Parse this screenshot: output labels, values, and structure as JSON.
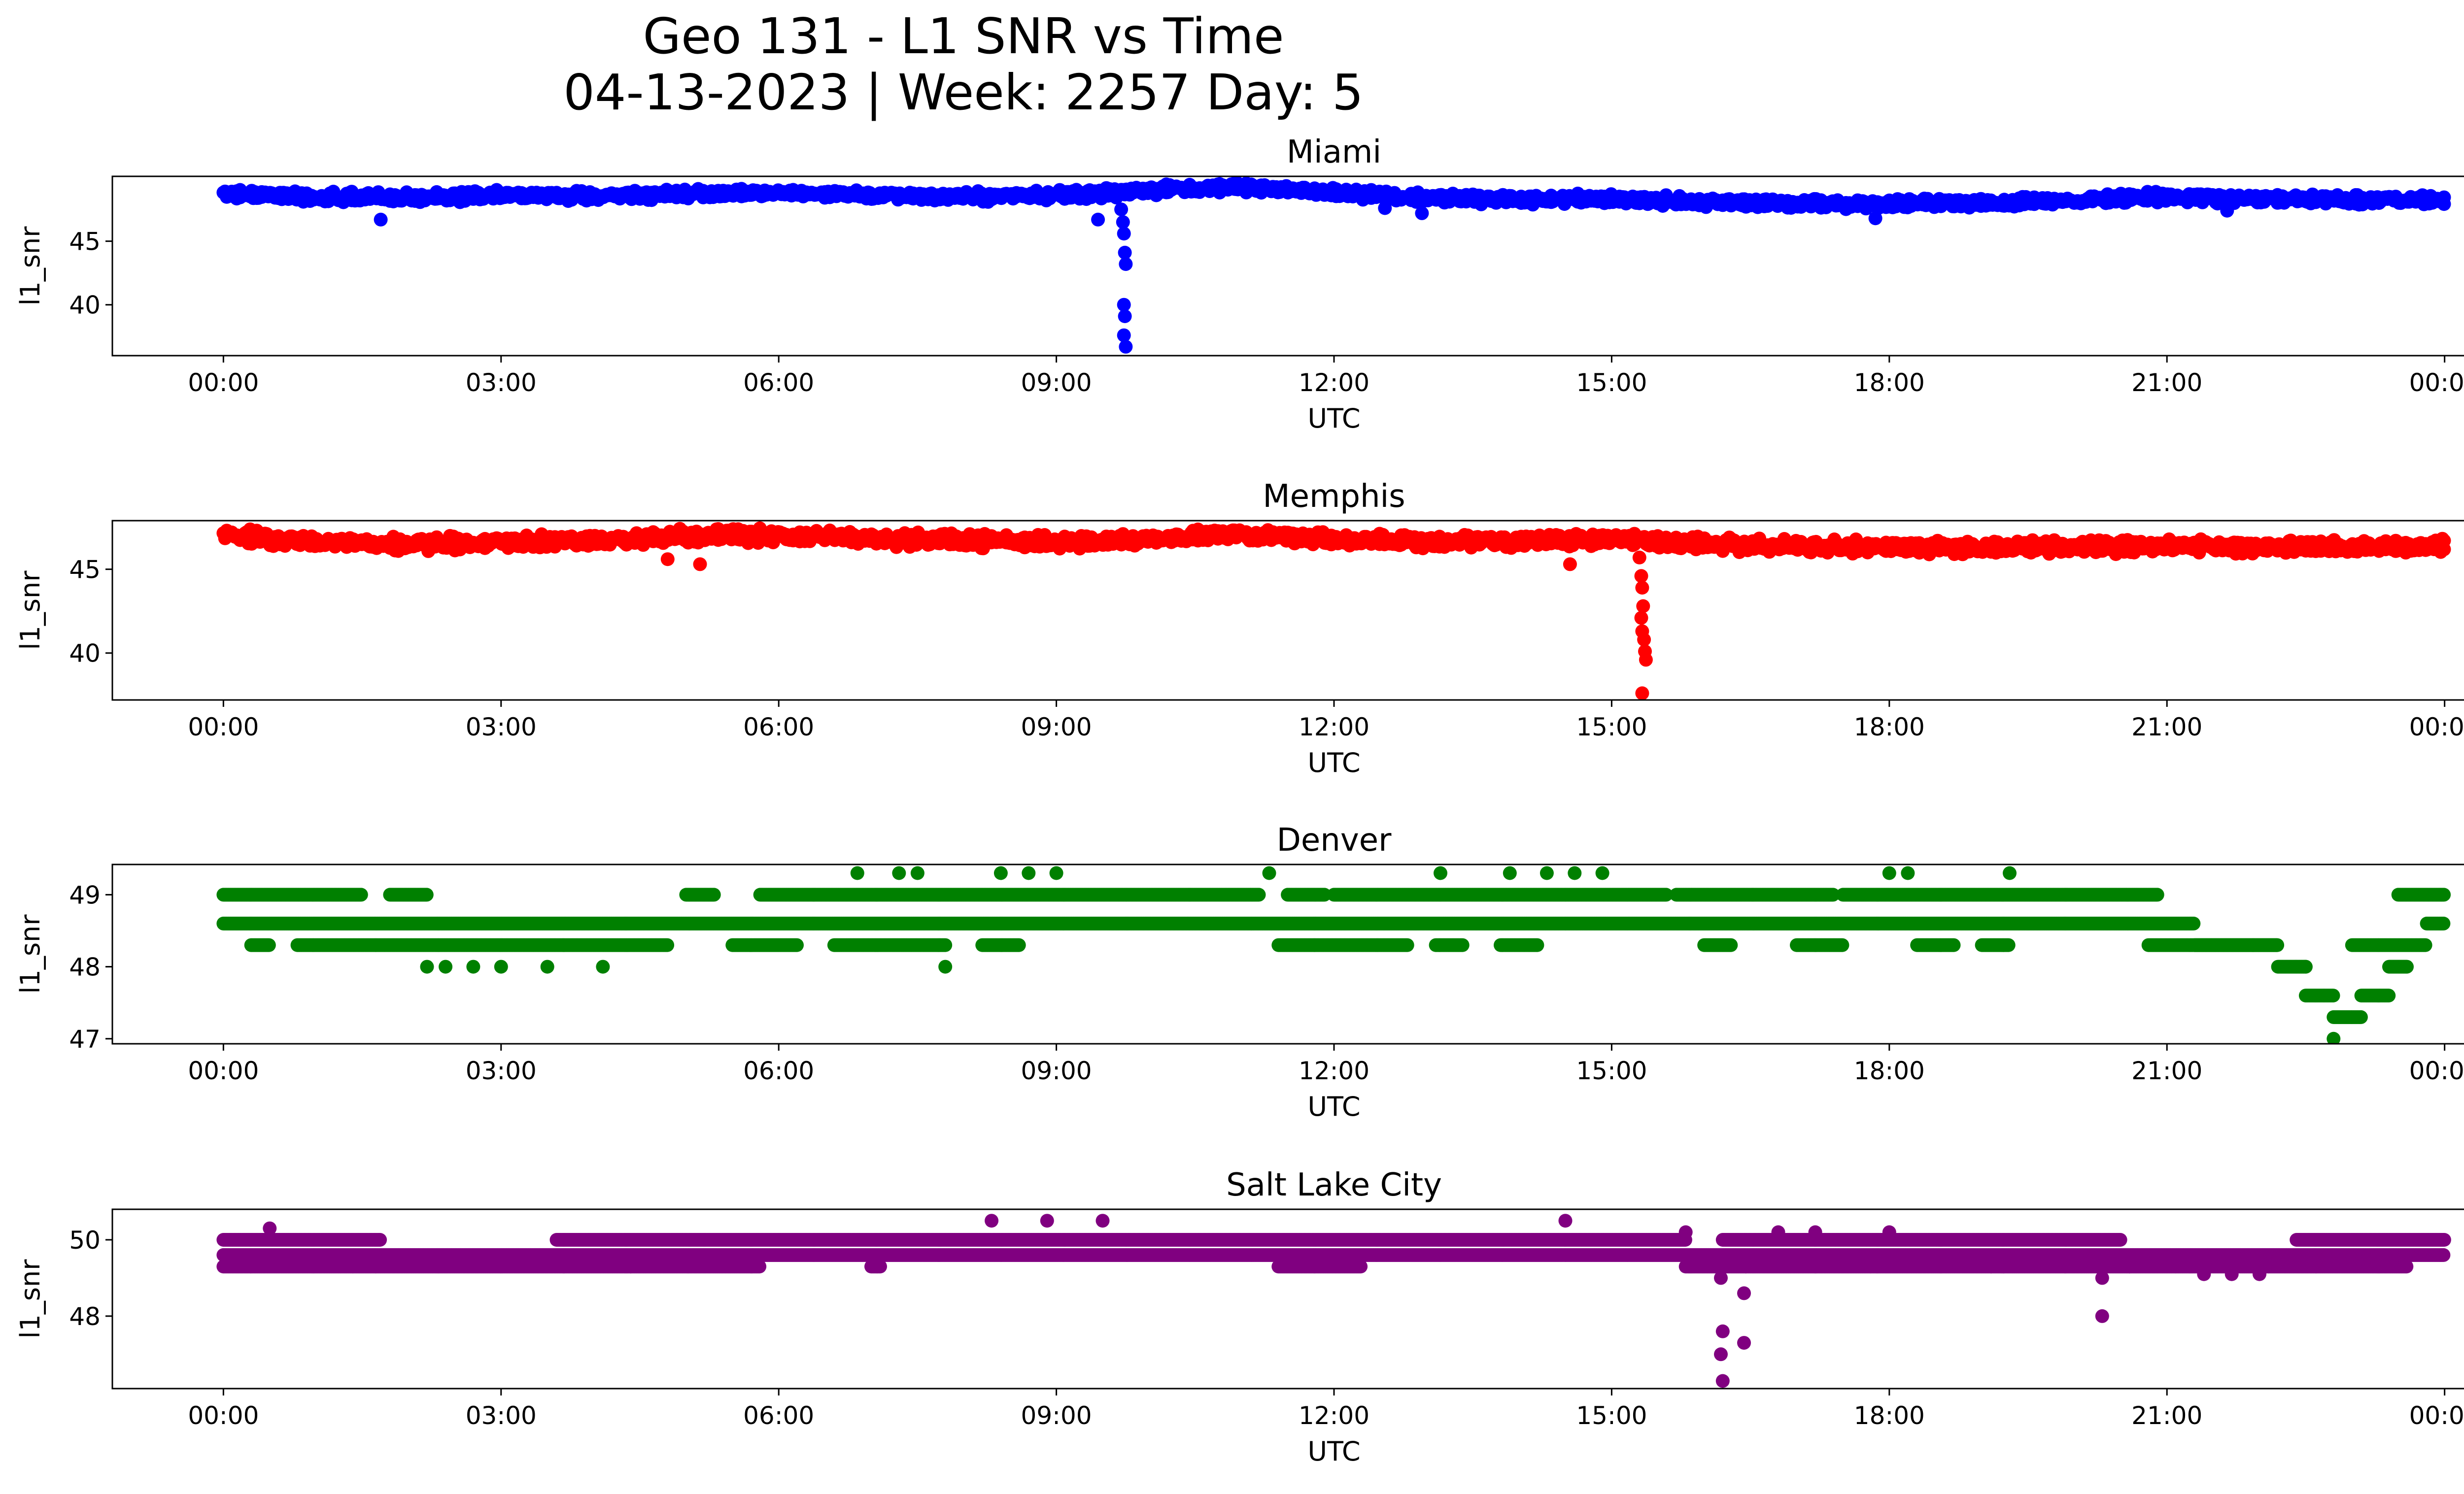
{
  "figure": {
    "title_line1": "Geo 131 - L1 SNR vs Time",
    "title_line2": "04-13-2023 | Week: 2257 Day: 5"
  },
  "chart_data": [
    {
      "type": "scatter",
      "title": "Miami",
      "xlabel": "UTC",
      "ylabel": "l1_snr",
      "color": "#0000ff",
      "x_ticks": [
        "00:00",
        "03:00",
        "06:00",
        "09:00",
        "12:00",
        "15:00",
        "18:00",
        "21:00",
        "00:00"
      ],
      "y_ticks": [
        40,
        45
      ],
      "xlim_hours": [
        -1.2,
        25.2
      ],
      "ylim": [
        36.0,
        50.1
      ],
      "baseline": [
        [
          0,
          48.7
        ],
        [
          1,
          48.5
        ],
        [
          2,
          48.4
        ],
        [
          3,
          48.6
        ],
        [
          4,
          48.5
        ],
        [
          5,
          48.7
        ],
        [
          6,
          48.8
        ],
        [
          7,
          48.6
        ],
        [
          8,
          48.5
        ],
        [
          9,
          48.6
        ],
        [
          10,
          49.0
        ],
        [
          11,
          49.3
        ],
        [
          12,
          48.8
        ],
        [
          13,
          48.4
        ],
        [
          14,
          48.3
        ],
        [
          15,
          48.3
        ],
        [
          16,
          48.1
        ],
        [
          17,
          48.0
        ],
        [
          18,
          47.9
        ],
        [
          19,
          48.0
        ],
        [
          20,
          48.2
        ],
        [
          21,
          48.5
        ],
        [
          22,
          48.3
        ],
        [
          23,
          48.2
        ],
        [
          24,
          48.3
        ]
      ],
      "outliers": [
        [
          1.7,
          46.7
        ],
        [
          9.45,
          46.7
        ],
        [
          9.7,
          47.5
        ],
        [
          9.72,
          46.5
        ],
        [
          9.73,
          45.6
        ],
        [
          9.74,
          44.1
        ],
        [
          9.75,
          43.2
        ],
        [
          9.73,
          40.0
        ],
        [
          9.74,
          39.1
        ],
        [
          9.73,
          37.6
        ],
        [
          9.75,
          36.7
        ],
        [
          12.55,
          47.6
        ],
        [
          12.95,
          47.2
        ],
        [
          17.85,
          46.8
        ],
        [
          21.65,
          47.4
        ]
      ]
    },
    {
      "type": "scatter",
      "title": "Memphis",
      "xlabel": "UTC",
      "ylabel": "l1_snr",
      "color": "#ff0000",
      "x_ticks": [
        "00:00",
        "03:00",
        "06:00",
        "09:00",
        "12:00",
        "15:00",
        "18:00",
        "21:00",
        "00:00"
      ],
      "y_ticks": [
        40,
        45
      ],
      "xlim_hours": [
        -1.2,
        25.2
      ],
      "ylim": [
        37.2,
        47.9
      ],
      "baseline": [
        [
          0,
          47.1
        ],
        [
          1,
          46.6
        ],
        [
          2,
          46.5
        ],
        [
          3,
          46.6
        ],
        [
          4,
          46.7
        ],
        [
          5,
          47.0
        ],
        [
          6,
          47.0
        ],
        [
          7,
          46.8
        ],
        [
          8,
          46.7
        ],
        [
          9,
          46.6
        ],
        [
          10,
          46.8
        ],
        [
          11,
          47.1
        ],
        [
          12,
          46.8
        ],
        [
          13,
          46.6
        ],
        [
          14,
          46.7
        ],
        [
          15,
          46.8
        ],
        [
          16,
          46.5
        ],
        [
          17,
          46.4
        ],
        [
          18,
          46.3
        ],
        [
          19,
          46.3
        ],
        [
          20,
          46.3
        ],
        [
          21,
          46.4
        ],
        [
          22,
          46.3
        ],
        [
          23,
          46.3
        ],
        [
          24,
          46.4
        ]
      ],
      "outliers": [
        [
          4.8,
          45.6
        ],
        [
          5.15,
          45.3
        ],
        [
          14.55,
          45.3
        ],
        [
          15.3,
          45.7
        ],
        [
          15.32,
          44.6
        ],
        [
          15.33,
          43.9
        ],
        [
          15.34,
          42.8
        ],
        [
          15.32,
          42.1
        ],
        [
          15.33,
          41.3
        ],
        [
          15.35,
          40.8
        ],
        [
          15.36,
          40.1
        ],
        [
          15.37,
          39.6
        ],
        [
          15.33,
          37.6
        ]
      ]
    },
    {
      "type": "scatter",
      "title": "Denver",
      "xlabel": "UTC",
      "ylabel": "l1_snr",
      "color": "#008000",
      "x_ticks": [
        "00:00",
        "03:00",
        "06:00",
        "09:00",
        "12:00",
        "15:00",
        "18:00",
        "21:00",
        "00:00"
      ],
      "y_ticks": [
        47,
        48,
        49
      ],
      "xlim_hours": [
        -1.2,
        25.2
      ],
      "ylim": [
        46.93,
        49.42
      ],
      "main_level": 48.6,
      "upper_segments": [
        [
          0,
          1.5
        ],
        [
          1.8,
          2.2
        ],
        [
          5.0,
          5.3
        ],
        [
          5.8,
          11.2
        ],
        [
          11.5,
          11.9
        ],
        [
          12.0,
          15.6
        ],
        [
          15.7,
          17.4
        ],
        [
          17.5,
          20.9
        ],
        [
          23.5,
          24.0
        ]
      ],
      "lower_segments": [
        [
          0.3,
          0.5
        ],
        [
          0.8,
          4.8
        ],
        [
          5.5,
          6.2
        ],
        [
          6.6,
          7.8
        ],
        [
          8.2,
          8.6
        ],
        [
          11.4,
          12.8
        ],
        [
          13.1,
          13.4
        ],
        [
          13.8,
          14.2
        ],
        [
          16.0,
          16.3
        ],
        [
          17.0,
          17.5
        ],
        [
          18.3,
          18.7
        ],
        [
          19.0,
          19.3
        ],
        [
          20.8,
          22.2
        ],
        [
          23.0,
          23.6
        ]
      ],
      "declining_tail": [
        [
          21.0,
          48.6
        ],
        [
          21.3,
          48.3
        ],
        [
          21.6,
          48.3
        ],
        [
          21.9,
          48.3
        ],
        [
          22.2,
          48.0
        ],
        [
          22.4,
          48.0
        ],
        [
          22.5,
          47.6
        ],
        [
          22.7,
          47.6
        ],
        [
          22.8,
          47.3
        ],
        [
          23.0,
          47.3
        ],
        [
          23.1,
          47.6
        ],
        [
          23.3,
          47.6
        ],
        [
          23.4,
          48.0
        ],
        [
          23.6,
          48.3
        ],
        [
          23.8,
          48.6
        ]
      ],
      "outliers": [
        [
          2.2,
          48.0
        ],
        [
          2.4,
          48.0
        ],
        [
          2.7,
          48.0
        ],
        [
          3.0,
          48.0
        ],
        [
          3.5,
          48.0
        ],
        [
          4.1,
          48.0
        ],
        [
          6.85,
          49.3
        ],
        [
          7.3,
          49.3
        ],
        [
          7.5,
          49.3
        ],
        [
          7.8,
          48.0
        ],
        [
          8.4,
          49.3
        ],
        [
          8.7,
          49.3
        ],
        [
          9.0,
          49.3
        ],
        [
          11.3,
          49.3
        ],
        [
          13.15,
          49.3
        ],
        [
          13.9,
          49.3
        ],
        [
          14.3,
          49.3
        ],
        [
          14.6,
          49.3
        ],
        [
          14.9,
          49.3
        ],
        [
          18.0,
          49.3
        ],
        [
          18.2,
          49.3
        ],
        [
          19.3,
          49.3
        ],
        [
          22.5,
          48.0
        ],
        [
          22.8,
          47.0
        ]
      ]
    },
    {
      "type": "scatter",
      "title": "Salt Lake City",
      "xlabel": "UTC",
      "ylabel": "l1_snr",
      "color": "#800080",
      "x_ticks": [
        "00:00",
        "03:00",
        "06:00",
        "09:00",
        "12:00",
        "15:00",
        "18:00",
        "21:00",
        "00:00"
      ],
      "y_ticks": [
        48,
        50
      ],
      "xlim_hours": [
        -1.2,
        25.2
      ],
      "ylim": [
        46.1,
        50.8
      ],
      "main_level": 49.6,
      "upper_segments": [
        [
          0,
          1.7
        ],
        [
          3.6,
          5.2
        ],
        [
          5.2,
          15.8
        ],
        [
          16.2,
          20.5
        ],
        [
          22.4,
          24.0
        ]
      ],
      "lower_segments": [
        [
          0,
          1.4
        ],
        [
          1.4,
          4.4
        ],
        [
          4.4,
          5.8
        ],
        [
          7.0,
          7.1
        ],
        [
          11.4,
          12.3
        ],
        [
          15.8,
          17.8
        ],
        [
          17.8,
          20.6
        ],
        [
          20.6,
          21.1
        ],
        [
          21.1,
          22.1
        ],
        [
          22.1,
          23.6
        ]
      ],
      "outliers": [
        [
          0.5,
          50.3
        ],
        [
          8.3,
          50.5
        ],
        [
          8.9,
          50.5
        ],
        [
          9.5,
          50.5
        ],
        [
          14.5,
          50.5
        ],
        [
          15.8,
          50.2
        ],
        [
          16.8,
          50.2
        ],
        [
          17.2,
          50.2
        ],
        [
          18.0,
          50.2
        ],
        [
          21.4,
          49.1
        ],
        [
          21.7,
          49.1
        ],
        [
          22.0,
          49.1
        ],
        [
          16.2,
          49.3
        ],
        [
          16.18,
          49.0
        ],
        [
          16.45,
          49.3
        ],
        [
          16.43,
          48.6
        ],
        [
          16.2,
          47.6
        ],
        [
          16.18,
          47.0
        ],
        [
          16.43,
          47.3
        ],
        [
          16.2,
          46.3
        ],
        [
          20.3,
          48.0
        ],
        [
          20.3,
          49.0
        ],
        [
          19.1,
          49.3
        ]
      ]
    }
  ]
}
